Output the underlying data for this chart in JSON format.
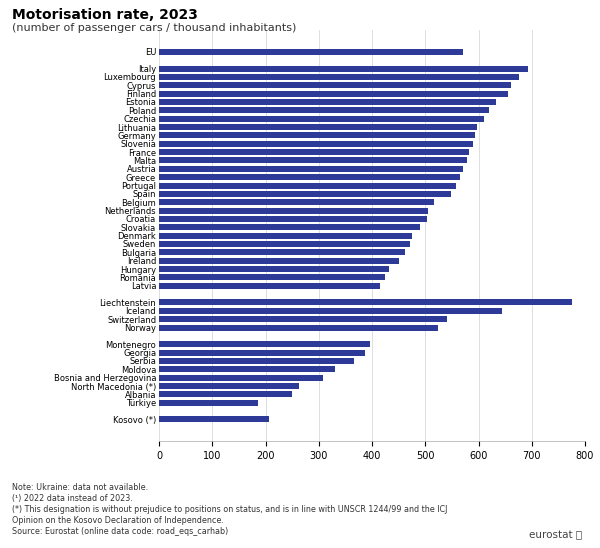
{
  "title": "Motorisation rate, 2023",
  "subtitle": "(number of passenger cars / thousand inhabitants)",
  "bar_color": "#2E3A97",
  "background_color": "#ffffff",
  "xlim": [
    0,
    800
  ],
  "xticks": [
    0,
    100,
    200,
    300,
    400,
    500,
    600,
    700,
    800
  ],
  "notes": [
    "Note: Ukraine: data not available.",
    "(¹) 2022 data instead of 2023.",
    "(*) This designation is without prejudice to positions on status, and is in line with UNSCR 1244/99 and the ICJ",
    "Opinion on the Kosovo Declaration of Independence.",
    "Source: Eurostat (online data code: road_eqs_carhab)"
  ],
  "countries": [
    "EU",
    "",
    "Italy",
    "Luxembourg",
    "Cyprus",
    "Finland",
    "Estonia",
    "Poland",
    "Czechia",
    "Lithuania",
    "Germany",
    "Slovenia",
    "France",
    "Malta",
    "Austria",
    "Greece",
    "Portugal",
    "Spain",
    "Belgium",
    "Netherlands",
    "Croatia",
    "Slovakia",
    "Denmark",
    "Sweden",
    "Bulgaria",
    "Ireland",
    "Hungary",
    "Romania",
    "Latvia",
    "",
    "Liechtenstein",
    "Iceland",
    "Switzerland",
    "Norway",
    "",
    "Montenegro",
    "Georgia",
    "Serbia",
    "Moldova",
    "Bosnia and Herzegovina",
    "North Macedonia (*)",
    "Albania",
    "Türkiye",
    "",
    "Kosovo (*)"
  ],
  "values": [
    570,
    0,
    693,
    676,
    661,
    656,
    633,
    619,
    610,
    598,
    594,
    590,
    583,
    578,
    571,
    565,
    558,
    548,
    516,
    505,
    503,
    491,
    476,
    472,
    462,
    451,
    432,
    424,
    415,
    0,
    775,
    645,
    540,
    524,
    0,
    397,
    387,
    366,
    330,
    308,
    263,
    249,
    185,
    0,
    207
  ]
}
